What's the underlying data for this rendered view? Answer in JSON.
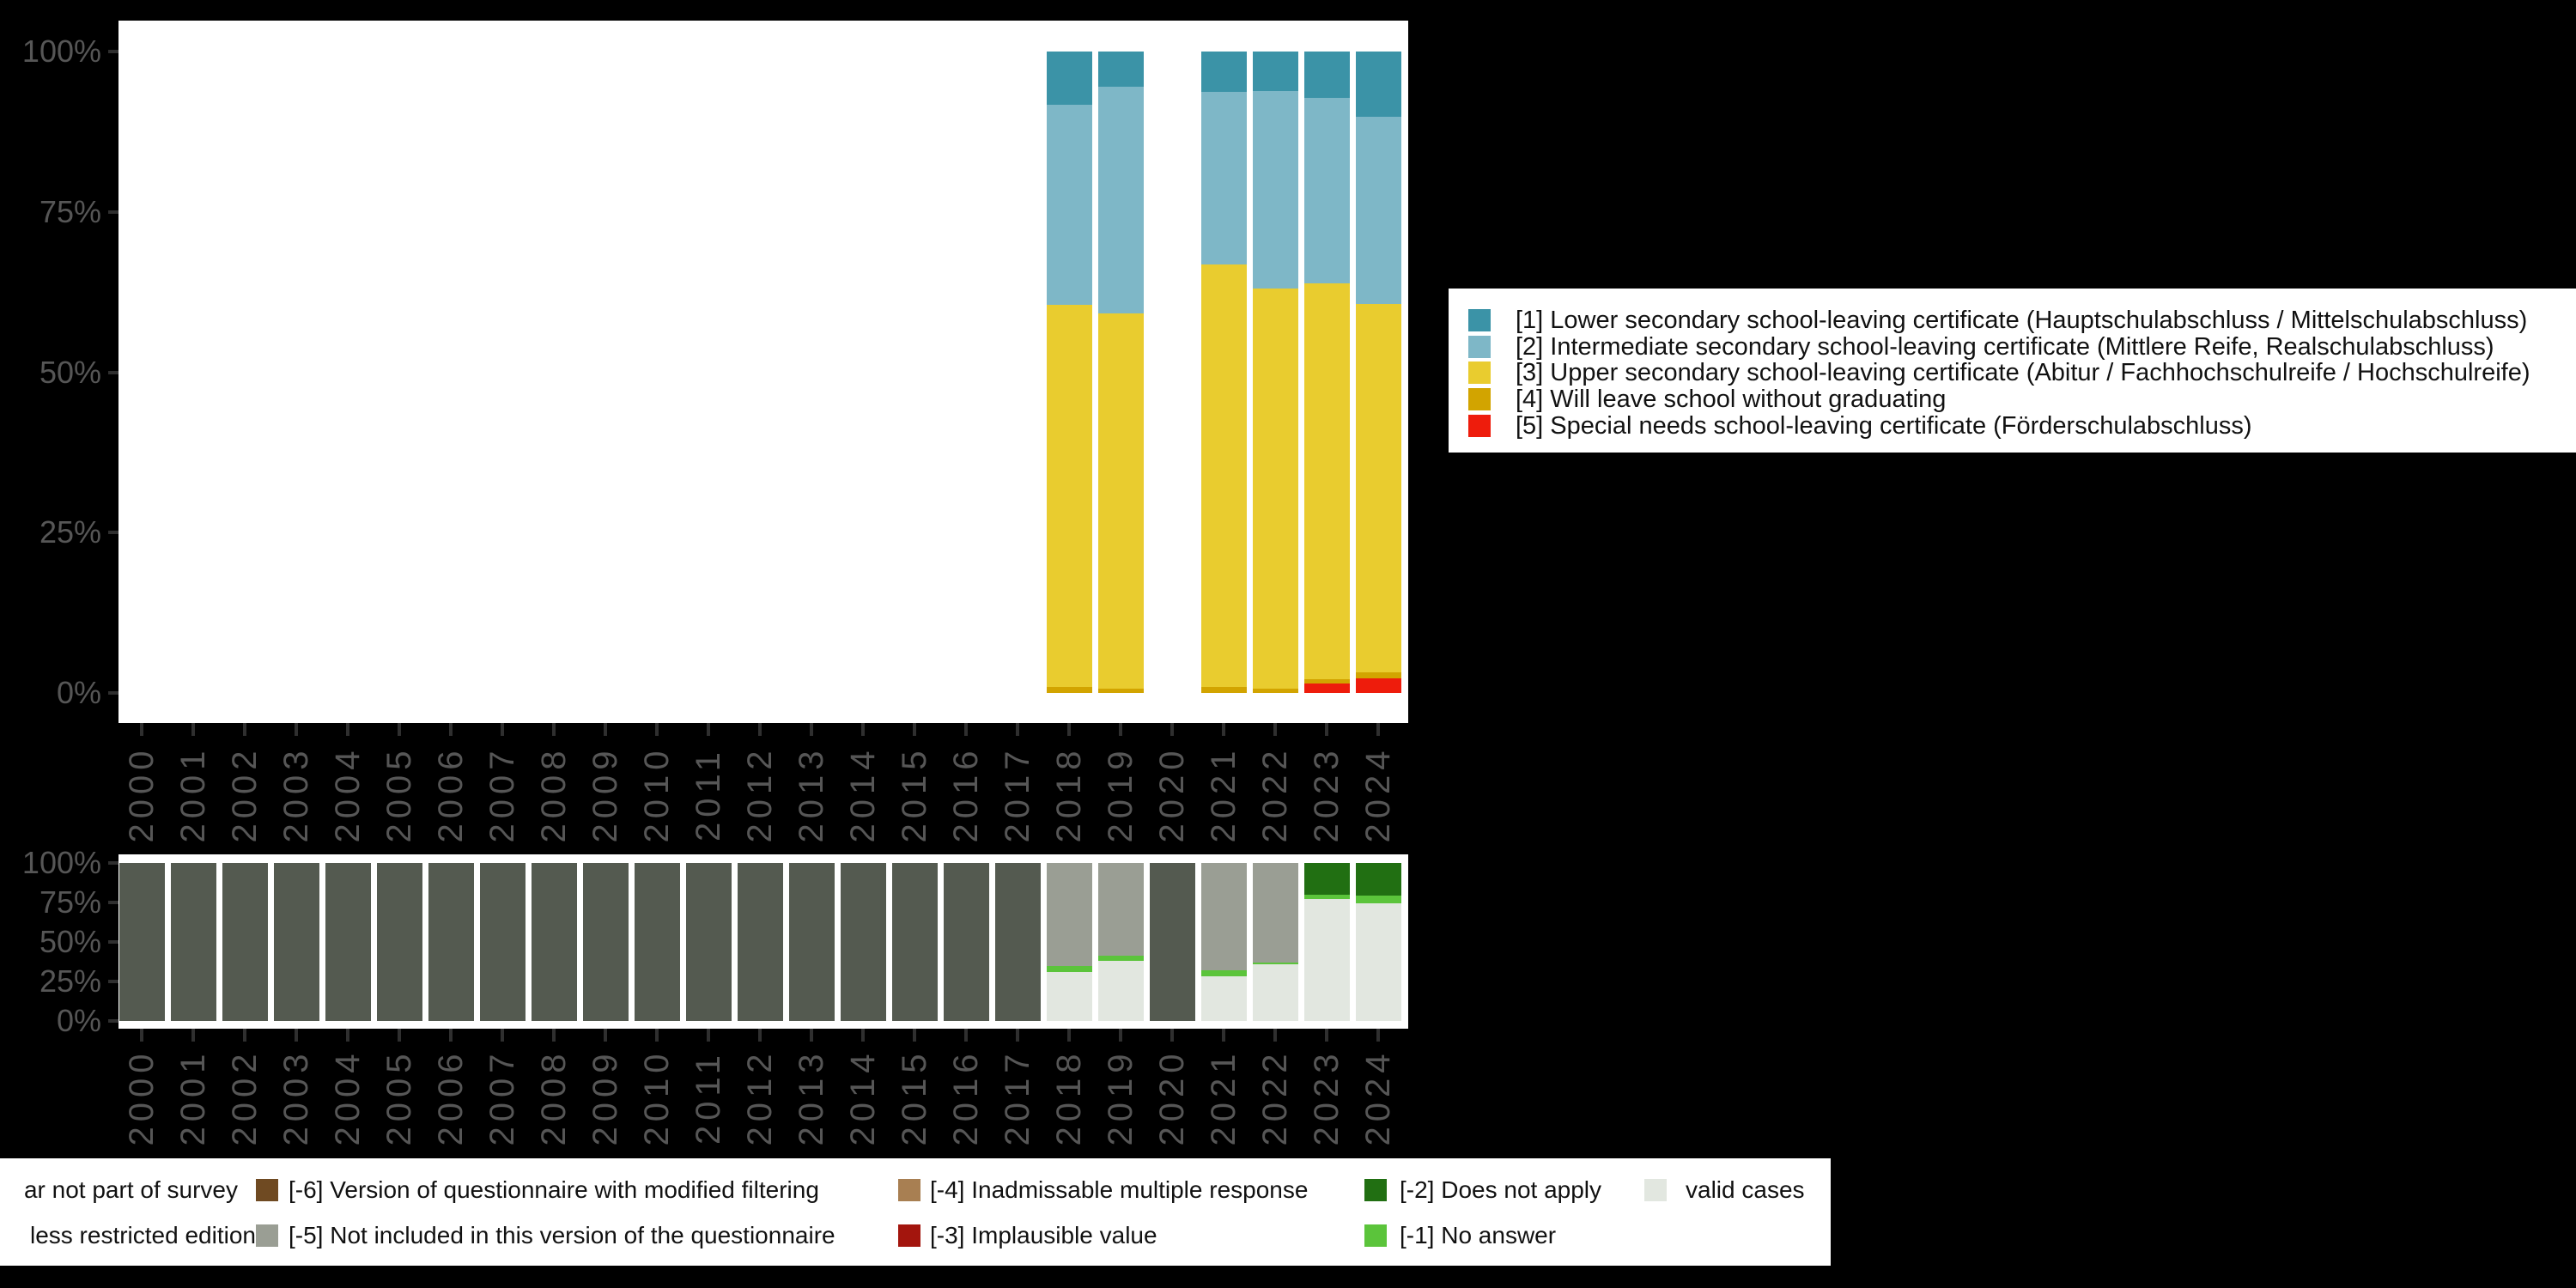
{
  "page": {
    "background": "#000000",
    "plot_background": "#ffffff"
  },
  "axis": {
    "y_tick_labels": [
      "100%",
      "75%",
      "50%",
      "25%",
      "0%"
    ],
    "y_tick_values": [
      100,
      75,
      50,
      25,
      0
    ],
    "x_tick_labels": [
      "2000",
      "2001",
      "2002",
      "2003",
      "2004",
      "2005",
      "2006",
      "2007",
      "2008",
      "2009",
      "2010",
      "2011",
      "2012",
      "2013",
      "2014",
      "2015",
      "2016",
      "2017",
      "2018",
      "2019",
      "2020",
      "2021",
      "2022",
      "2023",
      "2024"
    ],
    "text_color": "#565656",
    "tick_color": "#2f2f2f"
  },
  "chart_data": [
    {
      "type": "bar",
      "stacked": true,
      "title": "",
      "xlabel": "",
      "ylabel": "",
      "ylim": [
        0,
        100
      ],
      "grid": false,
      "legend_position": "right",
      "categories": [
        "2000",
        "2001",
        "2002",
        "2003",
        "2004",
        "2005",
        "2006",
        "2007",
        "2008",
        "2009",
        "2010",
        "2011",
        "2012",
        "2013",
        "2014",
        "2015",
        "2016",
        "2017",
        "2018",
        "2019",
        "2020",
        "2021",
        "2022",
        "2023",
        "2024"
      ],
      "stack_order": "bottom_to_top",
      "series": [
        {
          "key": "cat5",
          "label": "[5] Special needs school-leaving certificate (Förderschulabschluss)",
          "color": "#EE1C0C",
          "values": [
            null,
            null,
            null,
            null,
            null,
            null,
            null,
            null,
            null,
            null,
            null,
            null,
            null,
            null,
            null,
            null,
            null,
            null,
            0,
            0,
            null,
            0,
            0,
            1.5,
            2.3
          ]
        },
        {
          "key": "cat4",
          "label": "[4] Will leave school without graduating",
          "color": "#D2A400",
          "values": [
            null,
            null,
            null,
            null,
            null,
            null,
            null,
            null,
            null,
            null,
            null,
            null,
            null,
            null,
            null,
            null,
            null,
            null,
            0.9,
            0.7,
            null,
            0.9,
            0.7,
            0.7,
            0.9
          ]
        },
        {
          "key": "cat3",
          "label": "[3] Upper secondary school-leaving certificate (Abitur / Fachhochschulreife / Hochschulreife)",
          "color": "#E9CC2F",
          "values": [
            null,
            null,
            null,
            null,
            null,
            null,
            null,
            null,
            null,
            null,
            null,
            null,
            null,
            null,
            null,
            null,
            null,
            null,
            59.6,
            58.5,
            null,
            65.9,
            62.4,
            61.7,
            57.4
          ]
        },
        {
          "key": "cat2",
          "label": "[2] Intermediate secondary school-leaving certificate (Mittlere Reife, Realschulabschluss)",
          "color": "#7EB7C7",
          "values": [
            null,
            null,
            null,
            null,
            null,
            null,
            null,
            null,
            null,
            null,
            null,
            null,
            null,
            null,
            null,
            null,
            null,
            null,
            31.2,
            35.3,
            null,
            26.9,
            30.7,
            28.9,
            29.2
          ]
        },
        {
          "key": "cat1",
          "label": "[1] Lower secondary school-leaving certificate (Hauptschulabschluss / Mittelschulabschluss)",
          "color": "#3B93A7",
          "values": [
            null,
            null,
            null,
            null,
            null,
            null,
            null,
            null,
            null,
            null,
            null,
            null,
            null,
            null,
            null,
            null,
            null,
            null,
            8.3,
            5.5,
            null,
            6.3,
            6.2,
            7.2,
            10.2
          ]
        }
      ]
    },
    {
      "type": "bar",
      "stacked": true,
      "title": "",
      "xlabel": "",
      "ylabel": "",
      "ylim": [
        0,
        100
      ],
      "grid": false,
      "legend_position": "bottom",
      "categories": [
        "2000",
        "2001",
        "2002",
        "2003",
        "2004",
        "2005",
        "2006",
        "2007",
        "2008",
        "2009",
        "2010",
        "2011",
        "2012",
        "2013",
        "2014",
        "2015",
        "2016",
        "2017",
        "2018",
        "2019",
        "2020",
        "2021",
        "2022",
        "2023",
        "2024"
      ],
      "stack_order": "bottom_to_top",
      "series": [
        {
          "key": "valid",
          "label": "valid cases",
          "color": "#E2E7E0",
          "values": [
            null,
            null,
            null,
            null,
            null,
            null,
            null,
            null,
            null,
            null,
            null,
            null,
            null,
            null,
            null,
            null,
            null,
            null,
            31.1,
            38.0,
            null,
            28.4,
            35.7,
            77.2,
            74.6
          ]
        },
        {
          "key": "m1",
          "label": "[-1] No answer",
          "color": "#5BC43B",
          "values": [
            null,
            null,
            null,
            null,
            null,
            null,
            null,
            null,
            null,
            null,
            null,
            null,
            null,
            null,
            null,
            null,
            null,
            null,
            3.7,
            3.5,
            null,
            3.7,
            1.4,
            2.9,
            4.6
          ]
        },
        {
          "key": "m2",
          "label": "[-2] Does not apply",
          "color": "#216F12",
          "values": [
            null,
            null,
            null,
            null,
            null,
            null,
            null,
            null,
            null,
            null,
            null,
            null,
            null,
            null,
            null,
            null,
            null,
            null,
            null,
            null,
            null,
            null,
            null,
            19.9,
            20.8
          ]
        },
        {
          "key": "m5",
          "label": "[-5] Not included in this version of the questionnaire",
          "color": "#9A9E94",
          "values": [
            null,
            null,
            null,
            null,
            null,
            null,
            null,
            null,
            null,
            null,
            null,
            null,
            null,
            null,
            null,
            null,
            null,
            null,
            65.2,
            58.5,
            null,
            67.9,
            62.9,
            null,
            null
          ]
        },
        {
          "key": "notpart",
          "label": "ar not part of survey",
          "color": "#545A50",
          "values": [
            100,
            100,
            100,
            100,
            100,
            100,
            100,
            100,
            100,
            100,
            100,
            100,
            100,
            100,
            100,
            100,
            100,
            100,
            null,
            null,
            100,
            null,
            null,
            null,
            null
          ]
        }
      ]
    }
  ],
  "legend_main": {
    "items": [
      "cat1",
      "cat2",
      "cat3",
      "cat4",
      "cat5"
    ]
  },
  "legend_missing": {
    "rows": [
      [
        {
          "label": "ar not part of survey",
          "clipped": true
        },
        {
          "key": "m6",
          "label": "[-6] Version of questionnaire with modified filtering",
          "color": "#6F4A22"
        },
        {
          "key": "m4",
          "label": "[-4] Inadmissable multiple response",
          "color": "#A87F52"
        },
        {
          "key": "m2",
          "label": "[-2] Does not apply",
          "color": "#216F12"
        },
        {
          "key": "valid",
          "label": "valid cases",
          "color": "#E2E7E0"
        }
      ],
      [
        {
          "label": "less restricted edition",
          "clipped": true
        },
        {
          "key": "m5",
          "label": "[-5] Not included in this version of the questionnaire",
          "color": "#9A9E94"
        },
        {
          "key": "m3",
          "label": "[-3] Implausible value",
          "color": "#A3150D"
        },
        {
          "key": "m1",
          "label": "[-1] No answer",
          "color": "#5BC43B"
        }
      ]
    ]
  }
}
